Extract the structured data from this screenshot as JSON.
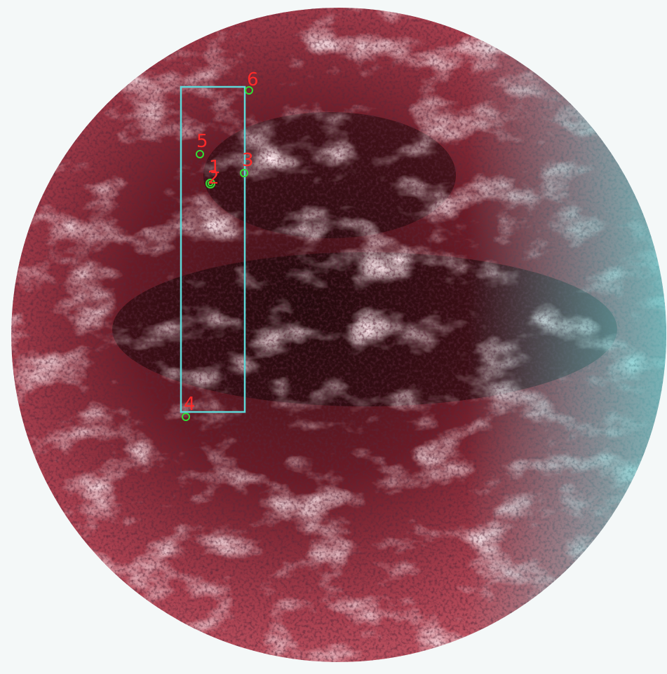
{
  "markers": [
    {
      "label": "6"
    },
    {
      "label": "5"
    },
    {
      "label": "3"
    },
    {
      "label": "1"
    },
    {
      "label": "2"
    },
    {
      "label": "4"
    }
  ]
}
